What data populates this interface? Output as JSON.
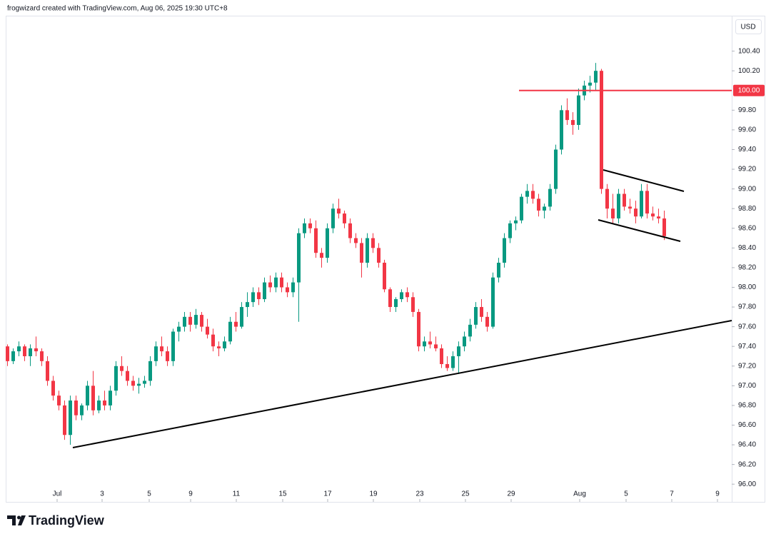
{
  "header": "frogwizard created with TradingView.com, Aug 06, 2025 19:30 UTC+8",
  "brand": "TradingView",
  "chart_data": {
    "type": "candlestick",
    "currency": "USD",
    "up_color": "#089981",
    "down_color": "#f23645",
    "grid": false,
    "ylim": [
      95.82,
      100.76
    ],
    "yticks": [
      {
        "value": 96.0,
        "label": "96.00"
      },
      {
        "value": 96.2,
        "label": "96.20"
      },
      {
        "value": 96.4,
        "label": "96.40"
      },
      {
        "value": 96.6,
        "label": "96.60"
      },
      {
        "value": 96.8,
        "label": "96.80"
      },
      {
        "value": 97.0,
        "label": "97.00"
      },
      {
        "value": 97.2,
        "label": "97.20"
      },
      {
        "value": 97.4,
        "label": "97.40"
      },
      {
        "value": 97.6,
        "label": "97.60"
      },
      {
        "value": 97.8,
        "label": "97.80"
      },
      {
        "value": 98.0,
        "label": "98.00"
      },
      {
        "value": 98.2,
        "label": "98.20"
      },
      {
        "value": 98.4,
        "label": "98.40"
      },
      {
        "value": 98.6,
        "label": "98.60"
      },
      {
        "value": 98.8,
        "label": "98.80"
      },
      {
        "value": 99.0,
        "label": "99.00"
      },
      {
        "value": 99.2,
        "label": "99.20"
      },
      {
        "value": 99.4,
        "label": "99.40"
      },
      {
        "value": 99.6,
        "label": "99.60"
      },
      {
        "value": 99.8,
        "label": "99.80"
      },
      {
        "value": 100.2,
        "label": "100.20"
      },
      {
        "value": 100.4,
        "label": "100.40"
      }
    ],
    "xlim": [
      -0.25,
      126.875
    ],
    "xticks": [
      {
        "value": 8.75,
        "label": "Jul"
      },
      {
        "value": 16.625,
        "label": "3"
      },
      {
        "value": 24.875,
        "label": "5"
      },
      {
        "value": 32.125,
        "label": "9"
      },
      {
        "value": 40.125,
        "label": "11"
      },
      {
        "value": 48.25,
        "label": "15"
      },
      {
        "value": 56.125,
        "label": "17"
      },
      {
        "value": 64.125,
        "label": "19"
      },
      {
        "value": 72.25,
        "label": "23"
      },
      {
        "value": 80.25,
        "label": "25"
      },
      {
        "value": 88.25,
        "label": "29"
      },
      {
        "value": 100.25,
        "label": "Aug"
      },
      {
        "value": 108.375,
        "label": "5"
      },
      {
        "value": 116.375,
        "label": "7"
      },
      {
        "value": 124.375,
        "label": "9"
      }
    ],
    "horizontal_line": {
      "value": 100,
      "label": "100.00",
      "color": "#f23645"
    },
    "values": [
      [
        97.4,
        97.42,
        97.2,
        97.25
      ],
      [
        97.25,
        97.38,
        97.22,
        97.35
      ],
      [
        97.35,
        97.45,
        97.3,
        97.4
      ],
      [
        97.4,
        97.42,
        97.25,
        97.3
      ],
      [
        97.3,
        97.42,
        97.2,
        97.38
      ],
      [
        97.38,
        97.5,
        97.3,
        97.35
      ],
      [
        97.35,
        97.38,
        97.2,
        97.25
      ],
      [
        97.25,
        97.3,
        97.0,
        97.05
      ],
      [
        97.05,
        97.1,
        96.85,
        96.9
      ],
      [
        96.9,
        96.95,
        96.75,
        96.8
      ],
      [
        96.8,
        96.85,
        96.45,
        96.5
      ],
      [
        96.5,
        96.9,
        96.4,
        96.85
      ],
      [
        96.85,
        96.9,
        96.65,
        96.7
      ],
      [
        96.7,
        96.82,
        96.65,
        96.8
      ],
      [
        96.8,
        97.05,
        96.75,
        97.0
      ],
      [
        97.0,
        97.15,
        96.7,
        96.75
      ],
      [
        96.75,
        96.9,
        96.72,
        96.85
      ],
      [
        96.85,
        96.95,
        96.75,
        96.8
      ],
      [
        96.8,
        97.0,
        96.75,
        96.95
      ],
      [
        96.95,
        97.25,
        96.9,
        97.2
      ],
      [
        97.2,
        97.3,
        97.1,
        97.15
      ],
      [
        97.15,
        97.2,
        97.0,
        97.05
      ],
      [
        97.05,
        97.1,
        96.95,
        97.0
      ],
      [
        97.0,
        97.08,
        96.92,
        97.02
      ],
      [
        97.02,
        97.1,
        96.98,
        97.05
      ],
      [
        97.05,
        97.3,
        97.0,
        97.25
      ],
      [
        97.25,
        97.45,
        97.2,
        97.4
      ],
      [
        97.4,
        97.5,
        97.3,
        97.35
      ],
      [
        97.35,
        97.4,
        97.2,
        97.25
      ],
      [
        97.25,
        97.58,
        97.2,
        97.55
      ],
      [
        97.55,
        97.65,
        97.45,
        97.6
      ],
      [
        97.6,
        97.75,
        97.55,
        97.7
      ],
      [
        97.7,
        97.75,
        97.55,
        97.62
      ],
      [
        97.62,
        97.78,
        97.58,
        97.72
      ],
      [
        97.72,
        97.75,
        97.55,
        97.6
      ],
      [
        97.6,
        97.68,
        97.48,
        97.52
      ],
      [
        97.52,
        97.58,
        97.35,
        97.4
      ],
      [
        97.4,
        97.45,
        97.3,
        97.38
      ],
      [
        97.38,
        97.5,
        97.35,
        97.45
      ],
      [
        97.45,
        97.7,
        97.42,
        97.65
      ],
      [
        97.65,
        97.75,
        97.55,
        97.6
      ],
      [
        97.6,
        97.85,
        97.58,
        97.8
      ],
      [
        97.8,
        97.95,
        97.7,
        97.85
      ],
      [
        97.85,
        98.0,
        97.8,
        97.95
      ],
      [
        97.95,
        98.0,
        97.82,
        97.88
      ],
      [
        97.88,
        98.1,
        97.85,
        98.05
      ],
      [
        98.05,
        98.12,
        97.95,
        98.0
      ],
      [
        98.0,
        98.15,
        97.95,
        98.1
      ],
      [
        98.1,
        98.15,
        97.95,
        98.0
      ],
      [
        98.0,
        98.05,
        97.9,
        97.95
      ],
      [
        97.95,
        98.1,
        97.9,
        98.05
      ],
      [
        98.05,
        98.6,
        97.65,
        98.55
      ],
      [
        98.55,
        98.7,
        98.5,
        98.65
      ],
      [
        98.65,
        98.7,
        98.55,
        98.6
      ],
      [
        98.6,
        98.68,
        98.3,
        98.35
      ],
      [
        98.35,
        98.4,
        98.2,
        98.3
      ],
      [
        98.3,
        98.65,
        98.25,
        98.6
      ],
      [
        98.6,
        98.85,
        98.55,
        98.8
      ],
      [
        98.8,
        98.9,
        98.7,
        98.75
      ],
      [
        98.75,
        98.78,
        98.6,
        98.65
      ],
      [
        98.65,
        98.7,
        98.45,
        98.5
      ],
      [
        98.5,
        98.55,
        98.4,
        98.45
      ],
      [
        98.45,
        98.5,
        98.1,
        98.25
      ],
      [
        98.25,
        98.55,
        98.2,
        98.5
      ],
      [
        98.5,
        98.55,
        98.35,
        98.4
      ],
      [
        98.4,
        98.45,
        98.2,
        98.25
      ],
      [
        98.25,
        98.28,
        97.95,
        97.98
      ],
      [
        97.98,
        98.0,
        97.75,
        97.8
      ],
      [
        97.8,
        97.9,
        97.75,
        97.88
      ],
      [
        97.88,
        97.98,
        97.85,
        97.95
      ],
      [
        97.95,
        98.0,
        97.85,
        97.9
      ],
      [
        97.9,
        97.95,
        97.7,
        97.75
      ],
      [
        97.75,
        97.78,
        97.35,
        97.4
      ],
      [
        97.4,
        97.5,
        97.35,
        97.45
      ],
      [
        97.45,
        97.55,
        97.38,
        97.42
      ],
      [
        97.42,
        97.5,
        97.35,
        97.38
      ],
      [
        97.38,
        97.42,
        97.18,
        97.22
      ],
      [
        97.22,
        97.3,
        97.15,
        97.18
      ],
      [
        97.18,
        97.35,
        97.15,
        97.3
      ],
      [
        97.3,
        97.45,
        97.12,
        97.4
      ],
      [
        97.4,
        97.55,
        97.35,
        97.5
      ],
      [
        97.5,
        97.68,
        97.45,
        97.62
      ],
      [
        97.62,
        97.85,
        97.58,
        97.8
      ],
      [
        97.8,
        97.88,
        97.65,
        97.7
      ],
      [
        97.7,
        97.75,
        97.55,
        97.6
      ],
      [
        97.6,
        98.15,
        97.58,
        98.1
      ],
      [
        98.1,
        98.3,
        98.05,
        98.25
      ],
      [
        98.25,
        98.55,
        98.2,
        98.5
      ],
      [
        98.5,
        98.68,
        98.45,
        98.65
      ],
      [
        98.65,
        98.72,
        98.58,
        98.68
      ],
      [
        98.68,
        98.95,
        98.65,
        98.92
      ],
      [
        98.92,
        99.05,
        98.85,
        98.98
      ],
      [
        98.98,
        99.05,
        98.85,
        98.9
      ],
      [
        98.9,
        98.95,
        98.72,
        98.78
      ],
      [
        98.78,
        98.85,
        98.7,
        98.82
      ],
      [
        98.82,
        99.05,
        98.78,
        99.0
      ],
      [
        99.0,
        99.45,
        98.95,
        99.4
      ],
      [
        99.4,
        99.85,
        99.35,
        99.8
      ],
      [
        99.8,
        99.92,
        99.65,
        99.7
      ],
      [
        99.7,
        99.78,
        99.55,
        99.65
      ],
      [
        99.65,
        100.02,
        99.6,
        99.95
      ],
      [
        99.95,
        100.1,
        99.9,
        100.05
      ],
      [
        100.05,
        100.15,
        99.98,
        100.08
      ],
      [
        100.08,
        100.28,
        100.0,
        100.2
      ],
      [
        100.2,
        100.22,
        98.95,
        99.0
      ],
      [
        99.0,
        99.05,
        98.7,
        98.8
      ],
      [
        98.8,
        98.95,
        98.65,
        98.7
      ],
      [
        98.7,
        99.0,
        98.65,
        98.95
      ],
      [
        98.95,
        99.0,
        98.78,
        98.82
      ],
      [
        98.82,
        98.9,
        98.75,
        98.8
      ],
      [
        98.8,
        98.88,
        98.65,
        98.72
      ],
      [
        98.72,
        99.05,
        98.7,
        98.98
      ],
      [
        98.98,
        99.05,
        98.7,
        98.75
      ],
      [
        98.75,
        98.82,
        98.68,
        98.72
      ],
      [
        98.72,
        98.8,
        98.65,
        98.7
      ],
      [
        98.7,
        98.78,
        98.48,
        98.52
      ]
    ]
  }
}
